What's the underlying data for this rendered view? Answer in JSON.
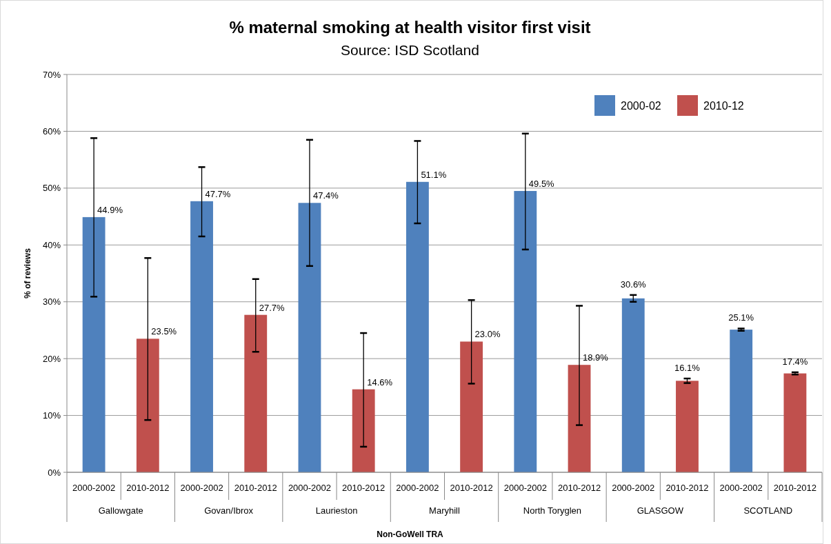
{
  "chart_data": {
    "type": "bar",
    "title": "% maternal smoking at health visitor first visit",
    "subtitle": "Source: ISD Scotland",
    "xlabel": "Non-GoWell TRA",
    "ylabel": "% of reviews",
    "categories": [
      "2000-2002",
      "2010-2012",
      "2000-2002",
      "2010-2012",
      "2000-2002",
      "2010-2012",
      "2000-2002",
      "2010-2012",
      "2000-2002",
      "2010-2012",
      "2000-2002",
      "2010-2012",
      "2000-2002",
      "2010-2012"
    ],
    "annotations": [
      "Gallowgate",
      "Govan/Ibrox",
      "Laurieston",
      "Maryhill",
      "North Toryglen",
      "GLASGOW",
      "SCOTLAND"
    ],
    "series": [
      {
        "name": "2000-02",
        "color": "#4f81bd",
        "values": [
          44.9,
          null,
          47.7,
          null,
          47.4,
          null,
          51.1,
          null,
          49.5,
          null,
          30.6,
          null,
          25.1,
          null
        ],
        "value_labels": [
          "44.9%",
          null,
          "47.7%",
          null,
          "47.4%",
          null,
          "51.1%",
          null,
          "49.5%",
          null,
          "30.6%",
          null,
          "25.1%",
          null
        ],
        "errors": [
          [
            30.9,
            58.8
          ],
          null,
          [
            41.5,
            53.7
          ],
          null,
          [
            36.3,
            58.5
          ],
          null,
          [
            43.8,
            58.3
          ],
          null,
          [
            39.2,
            59.6
          ],
          null,
          [
            30.0,
            31.2
          ],
          null,
          [
            24.9,
            25.3
          ],
          null
        ]
      },
      {
        "name": "2010-12",
        "color": "#c0504d",
        "values": [
          null,
          23.5,
          null,
          27.7,
          null,
          14.6,
          null,
          23.0,
          null,
          18.9,
          null,
          16.1,
          null,
          17.4
        ],
        "value_labels": [
          null,
          "23.5%",
          null,
          "27.7%",
          null,
          "14.6%",
          null,
          "23.0%",
          null,
          "18.9%",
          null,
          "16.1%",
          null,
          "17.4%"
        ],
        "errors": [
          null,
          [
            9.2,
            37.7
          ],
          null,
          [
            21.2,
            34.0
          ],
          null,
          [
            4.5,
            24.5
          ],
          null,
          [
            15.6,
            30.3
          ],
          null,
          [
            8.3,
            29.3
          ],
          null,
          [
            15.7,
            16.5
          ],
          null,
          [
            17.2,
            17.6
          ]
        ]
      }
    ],
    "ylim": [
      0,
      70
    ],
    "yticks": [
      {
        "value": 0,
        "label": "0%"
      },
      {
        "value": 10,
        "label": "10%"
      },
      {
        "value": 20,
        "label": "20%"
      },
      {
        "value": 30,
        "label": "30%"
      },
      {
        "value": 40,
        "label": "40%"
      },
      {
        "value": 50,
        "label": "50%"
      },
      {
        "value": 60,
        "label": "60%"
      },
      {
        "value": 70,
        "label": "70%"
      }
    ],
    "grid": "y",
    "legend": "top right"
  }
}
